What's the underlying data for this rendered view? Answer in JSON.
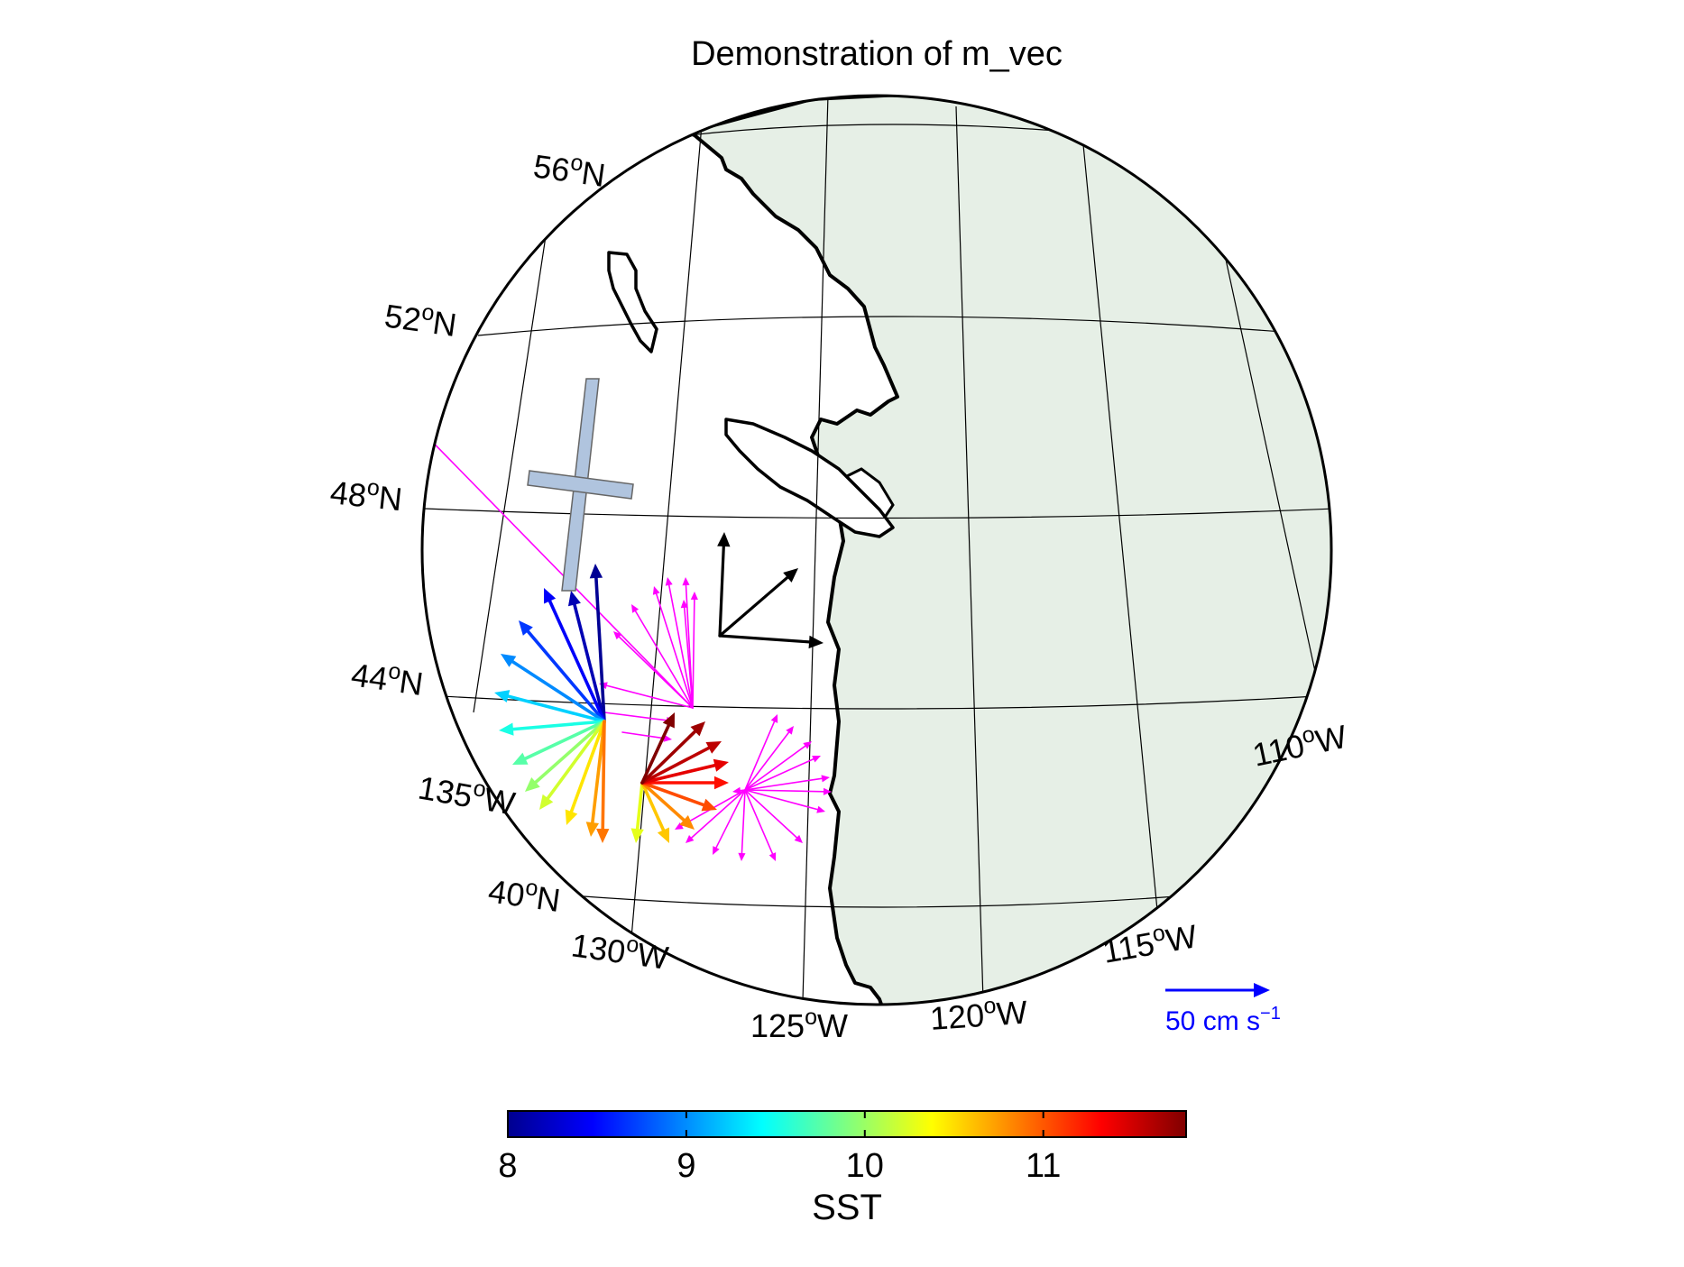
{
  "title": "Demonstration of m_vec",
  "lat_labels": [
    {
      "deg": "56",
      "hemi": "N"
    },
    {
      "deg": "52",
      "hemi": "N"
    },
    {
      "deg": "48",
      "hemi": "N"
    },
    {
      "deg": "44",
      "hemi": "N"
    },
    {
      "deg": "40",
      "hemi": "N"
    }
  ],
  "lon_labels": [
    {
      "deg": "135",
      "hemi": "W"
    },
    {
      "deg": "130",
      "hemi": "W"
    },
    {
      "deg": "125",
      "hemi": "W"
    },
    {
      "deg": "120",
      "hemi": "W"
    },
    {
      "deg": "115",
      "hemi": "W"
    },
    {
      "deg": "110",
      "hemi": "W"
    }
  ],
  "reference_vector": {
    "label_main": "50 cm s",
    "label_exp": "−1",
    "color": "#0000ff"
  },
  "colorbar": {
    "label": "SST",
    "min": 8,
    "max": 11.8,
    "ticks": [
      "8",
      "9",
      "10",
      "11"
    ],
    "colormap": "jet"
  },
  "colors": {
    "land": "#e6efe6",
    "coast": "#000000",
    "grid": "#000000",
    "magenta_arrows": "#ff00ff",
    "cross_symbol": "#b0c4de",
    "axis_arrows": "#000000"
  }
}
